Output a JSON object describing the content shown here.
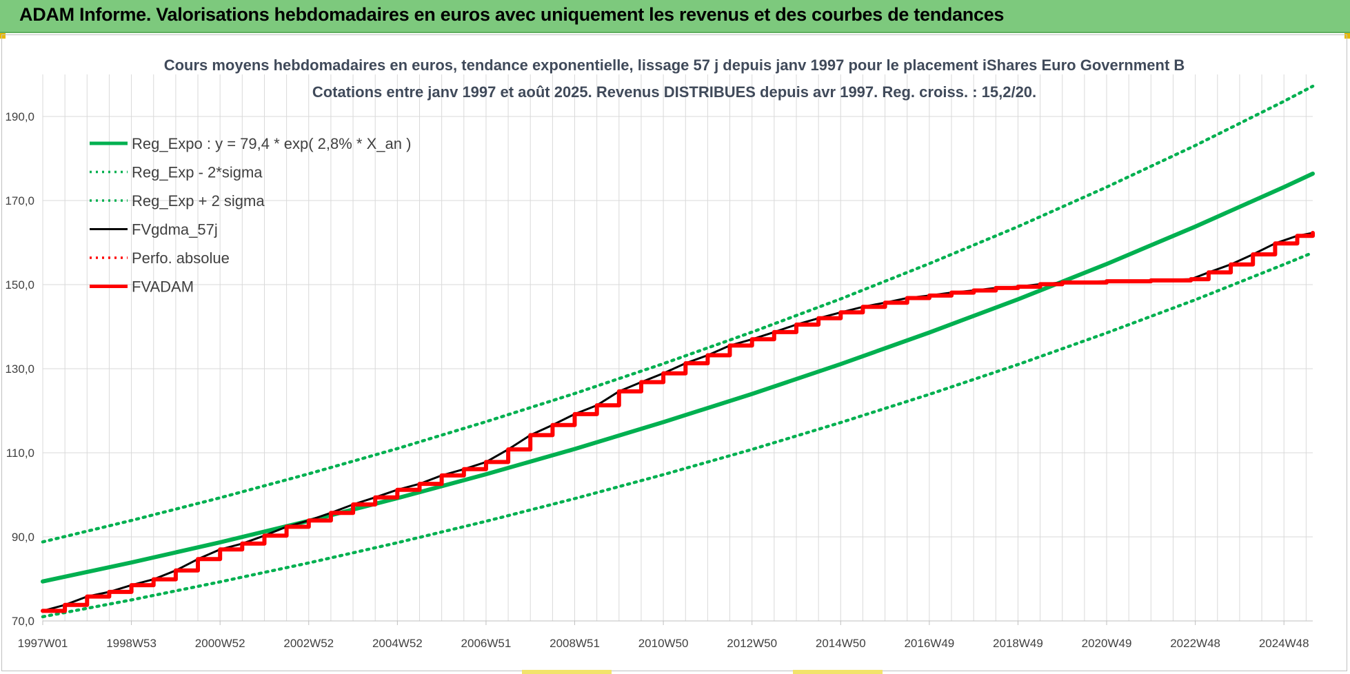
{
  "header": {
    "banner_title": "ADAM Informe. Valorisations hebdomadaires en euros avec uniquement les revenus et des courbes de tendances"
  },
  "colors": {
    "banner_bg": "#7dc97d",
    "trend_green": "#00b050",
    "fv_black": "#000000",
    "perfo_red": "#ff0000",
    "adam_red": "#ff0000",
    "grid": "#d9d9d9"
  },
  "chart_data": {
    "type": "line",
    "title_lines": [
      "Cours moyens hebdomadaires en euros, tendance exponentielle, lissage 57 j depuis janv 1997 pour le placement iShares Euro Government B",
      "Cotations entre janv 1997 et août 2025.  Revenus DISTRIBUES depuis avr 1997. Reg.  croiss. : 15,2/20."
    ],
    "x_tick_labels": [
      "1997W01",
      "1998W53",
      "2000W52",
      "2002W52",
      "2004W52",
      "2006W51",
      "2008W51",
      "2010W50",
      "2012W50",
      "2014W50",
      "2016W49",
      "2018W49",
      "2020W49",
      "2022W48",
      "2024W48"
    ],
    "x_tick_years": [
      1997.0,
      1999.0,
      2001.0,
      2003.0,
      2005.0,
      2007.0,
      2009.0,
      2011.0,
      2013.0,
      2015.0,
      2017.0,
      2019.0,
      2021.0,
      2023.0,
      2025.0
    ],
    "x_range": [
      1997.0,
      2025.65
    ],
    "y_ticks": [
      "70,0",
      "90,0",
      "110,0",
      "130,0",
      "150,0",
      "170,0",
      "190,0"
    ],
    "y_tick_values": [
      70,
      90,
      110,
      130,
      150,
      170,
      190
    ],
    "ylim": [
      70,
      200
    ],
    "grid": true,
    "legend_position": "top-left",
    "legend": [
      {
        "label": "Reg_Expo : y = 79,4 * exp( 2,8% *  X_an )",
        "style": "solid-thick",
        "color": "#00b050"
      },
      {
        "label": "Reg_Exp - 2*sigma",
        "style": "dotted",
        "color": "#00b050"
      },
      {
        "label": "Reg_Exp + 2 sigma",
        "style": "dotted",
        "color": "#00b050"
      },
      {
        "label": "FVgdma_57j",
        "style": "solid",
        "color": "#000000"
      },
      {
        "label": "Perfo. absolue",
        "style": "dotted",
        "color": "#ff0000"
      },
      {
        "label": "FVADAM",
        "style": "solid-thick",
        "color": "#ff0000"
      }
    ],
    "series": [
      {
        "name": "Reg_Expo : y = 79,4 * exp( 2,8% *  X_an )",
        "x": [
          1997.0,
          1999.0,
          2001.0,
          2003.0,
          2005.0,
          2007.0,
          2009.0,
          2011.0,
          2013.0,
          2015.0,
          2017.0,
          2019.0,
          2021.0,
          2023.0,
          2025.0,
          2025.65
        ],
        "values": [
          79.4,
          83.9,
          88.7,
          93.8,
          99.2,
          104.9,
          110.9,
          117.3,
          124.0,
          131.1,
          138.6,
          146.5,
          154.9,
          163.8,
          173.2,
          176.4
        ]
      },
      {
        "name": "Reg_Exp - 2*sigma",
        "x": [
          1997.0,
          1999.0,
          2001.0,
          2003.0,
          2005.0,
          2007.0,
          2009.0,
          2011.0,
          2013.0,
          2015.0,
          2017.0,
          2019.0,
          2021.0,
          2023.0,
          2025.0,
          2025.65
        ],
        "values": [
          71.0,
          75.0,
          79.3,
          83.8,
          88.6,
          93.7,
          99.1,
          104.8,
          110.8,
          117.2,
          123.9,
          131.0,
          138.5,
          146.4,
          154.8,
          157.6
        ]
      },
      {
        "name": "Reg_Exp + 2 sigma",
        "x": [
          1997.0,
          1999.0,
          2001.0,
          2003.0,
          2005.0,
          2007.0,
          2009.0,
          2011.0,
          2013.0,
          2015.0,
          2017.0,
          2019.0,
          2021.0,
          2023.0,
          2025.0,
          2025.65
        ],
        "values": [
          88.8,
          93.9,
          99.3,
          105.0,
          111.0,
          117.4,
          124.1,
          131.2,
          138.7,
          146.6,
          155.0,
          163.8,
          173.2,
          183.1,
          193.6,
          197.2
        ]
      },
      {
        "name": "FVgdma_57j",
        "x": [
          1997.0,
          1997.5,
          1998.0,
          1998.5,
          1999.0,
          1999.5,
          2000.0,
          2000.5,
          2001.0,
          2001.5,
          2002.0,
          2002.5,
          2003.0,
          2003.5,
          2004.0,
          2004.5,
          2005.0,
          2005.5,
          2006.0,
          2006.5,
          2007.0,
          2007.5,
          2008.0,
          2008.5,
          2009.0,
          2009.5,
          2010.0,
          2010.5,
          2011.0,
          2011.5,
          2012.0,
          2012.5,
          2013.0,
          2013.5,
          2014.0,
          2014.5,
          2015.0,
          2015.5,
          2016.0,
          2016.5,
          2017.0,
          2017.5,
          2018.0,
          2018.5,
          2019.0,
          2019.5,
          2020.0,
          2021.0,
          2022.0,
          2022.9,
          2023.3,
          2023.8,
          2024.3,
          2024.8,
          2025.3,
          2025.65
        ],
        "values": [
          72.4,
          73.8,
          75.8,
          76.9,
          78.5,
          79.9,
          82.0,
          84.7,
          87.0,
          88.4,
          90.3,
          92.4,
          93.9,
          95.7,
          97.7,
          99.4,
          101.2,
          102.6,
          104.6,
          106.1,
          107.8,
          110.8,
          114.2,
          116.6,
          119.2,
          121.3,
          124.6,
          126.8,
          128.9,
          131.3,
          133.2,
          135.5,
          137.0,
          138.7,
          140.5,
          142.0,
          143.4,
          144.7,
          145.7,
          146.8,
          147.4,
          148.1,
          148.6,
          149.2,
          149.5,
          150.1,
          150.5,
          150.8,
          151.0,
          151.3,
          152.9,
          154.8,
          157.2,
          159.8,
          161.6,
          162.3
        ]
      },
      {
        "name": "FVADAM",
        "x": [
          1997.0,
          1997.5,
          1998.0,
          1998.5,
          1999.0,
          1999.5,
          2000.0,
          2000.5,
          2001.0,
          2001.5,
          2002.0,
          2002.5,
          2003.0,
          2003.5,
          2004.0,
          2004.5,
          2005.0,
          2005.5,
          2006.0,
          2006.5,
          2007.0,
          2007.5,
          2008.0,
          2008.5,
          2009.0,
          2009.5,
          2010.0,
          2010.5,
          2011.0,
          2011.5,
          2012.0,
          2012.5,
          2013.0,
          2013.5,
          2014.0,
          2014.5,
          2015.0,
          2015.5,
          2016.0,
          2016.5,
          2017.0,
          2017.5,
          2018.0,
          2018.5,
          2019.0,
          2019.5,
          2020.0,
          2021.0,
          2022.0,
          2022.9,
          2023.3,
          2023.8,
          2024.3,
          2024.8,
          2025.3,
          2025.65
        ],
        "values": [
          72.4,
          73.8,
          75.8,
          76.9,
          78.5,
          79.9,
          82.0,
          84.7,
          87.0,
          88.4,
          90.3,
          92.4,
          93.9,
          95.7,
          97.7,
          99.4,
          101.2,
          102.6,
          104.6,
          106.1,
          107.8,
          110.8,
          114.2,
          116.6,
          119.2,
          121.3,
          124.6,
          126.8,
          128.9,
          131.3,
          133.2,
          135.5,
          137.0,
          138.7,
          140.5,
          142.0,
          143.4,
          144.7,
          145.7,
          146.8,
          147.4,
          148.1,
          148.6,
          149.2,
          149.5,
          150.1,
          150.5,
          150.8,
          151.0,
          151.3,
          152.9,
          154.8,
          157.2,
          159.8,
          161.6,
          162.3
        ]
      }
    ]
  }
}
